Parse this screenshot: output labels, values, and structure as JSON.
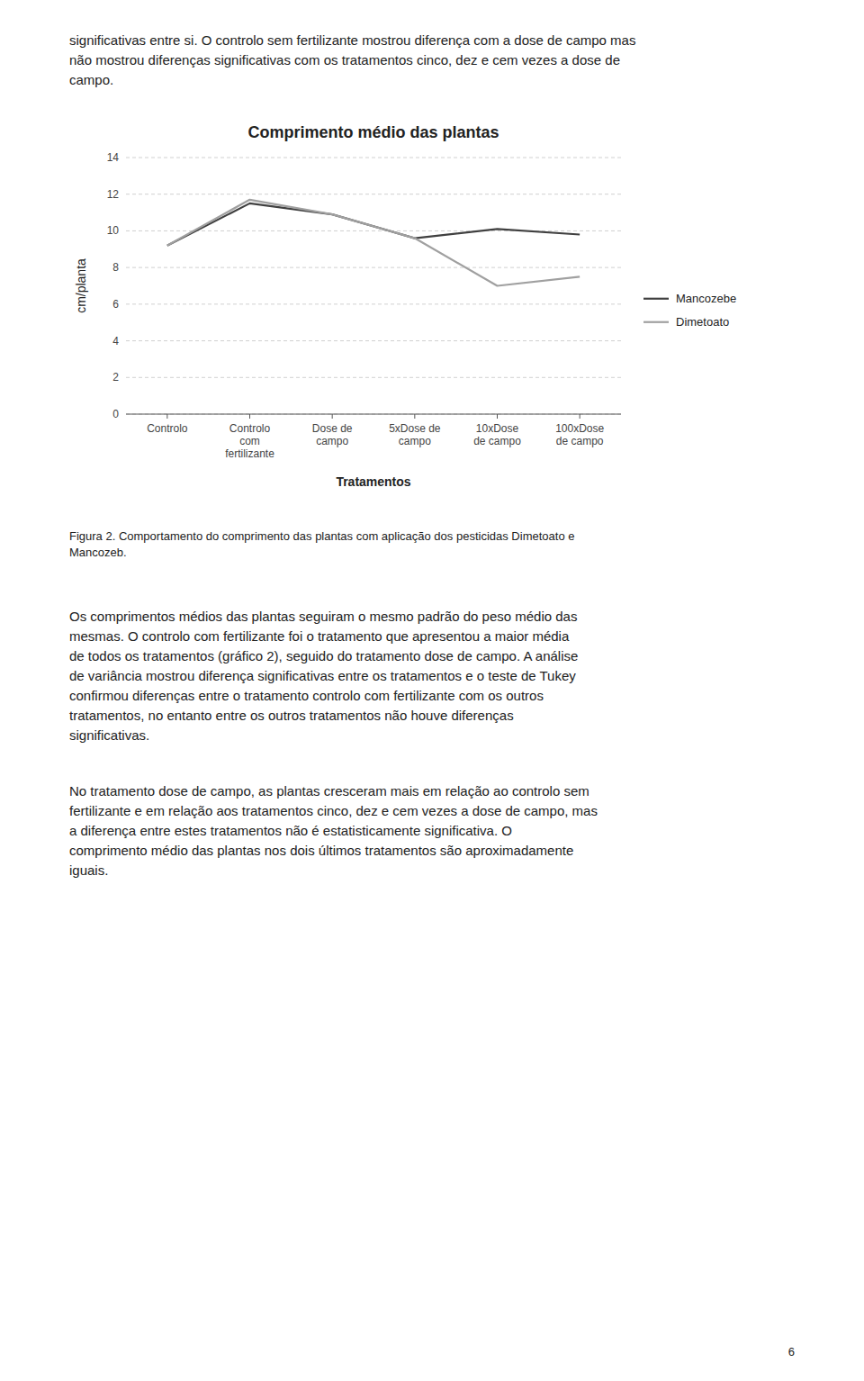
{
  "chart_data": {
    "type": "line",
    "title": "Comprimento médio das plantas",
    "x_label": "Tratamentos",
    "y_label": "cm/planta",
    "categories": [
      "Controlo",
      "Controlo\ncom\nfertilizante",
      "Dose de\ncampo",
      "5xDose de\ncampo",
      "10xDose\nde campo",
      "100xDose\nde campo"
    ],
    "series": [
      {
        "name": "Mancozebe",
        "color": "#404040",
        "values": [
          9.2,
          11.5,
          10.9,
          9.6,
          10.1,
          9.8
        ]
      },
      {
        "name": "Dimetoato",
        "color": "#a0a0a0",
        "values": [
          9.2,
          11.7,
          10.9,
          9.6,
          7.0,
          7.5
        ]
      }
    ],
    "ylim": [
      0,
      14
    ],
    "yticks": [
      0,
      2,
      4,
      6,
      8,
      10,
      12,
      14
    ],
    "grid": true,
    "legend": "right"
  },
  "text_above": [
    "significativas entre si. O controlo sem fertilizante mostrou diferença com a dose de campo mas",
    "não mostrou diferenças significativas com os tratamentos cinco, dez e cem vezes a dose de",
    "campo."
  ],
  "caption": [
    "Figura 2. Comportamento do comprimento das plantas com aplicação dos pesticidas Dimetoato e",
    "Mancozeb."
  ],
  "text_below": [
    [
      "Os comprimentos médios das plantas seguiram o mesmo padrão do peso médio das",
      "mesmas. O controlo com fertilizante foi o tratamento que apresentou a maior média",
      "de todos os tratamentos (gráfico 2), seguido do tratamento dose de campo. A análise",
      "de variância mostrou diferença significativas entre os tratamentos e o teste de Tukey",
      "confirmou diferenças entre o tratamento controlo com fertilizante com os outros",
      "tratamentos, no entanto entre os outros tratamentos não houve diferenças",
      "significativas."
    ],
    [
      "No tratamento dose de campo, as plantas cresceram mais em relação ao controlo sem",
      "fertilizante e em relação aos tratamentos cinco, dez e cem vezes a dose de campo, mas",
      "a diferença entre estes tratamentos não é estatisticamente significativa. O",
      "comprimento médio das plantas nos dois últimos tratamentos são aproximadamente",
      "iguais."
    ]
  ],
  "page_number": "6"
}
